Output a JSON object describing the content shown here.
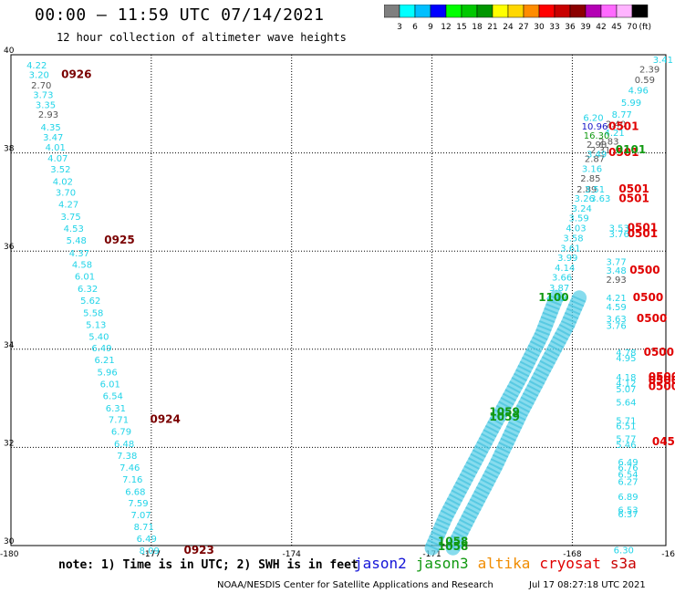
{
  "header": {
    "title": "00:00 — 11:59 UTC 07/14/2021",
    "subtitle": "12 hour collection of altimeter wave heights"
  },
  "colorbar": {
    "unit": "(ft)",
    "bins": [
      {
        "label": "3",
        "color": "#7f7f7f"
      },
      {
        "label": "6",
        "color": "#00ffff"
      },
      {
        "label": "9",
        "color": "#00bfff"
      },
      {
        "label": "12",
        "color": "#0000ff"
      },
      {
        "label": "15",
        "color": "#00ff00"
      },
      {
        "label": "18",
        "color": "#00c800"
      },
      {
        "label": "21",
        "color": "#009600"
      },
      {
        "label": "24",
        "color": "#ffff00"
      },
      {
        "label": "27",
        "color": "#ffd700"
      },
      {
        "label": "30",
        "color": "#ff8c00"
      },
      {
        "label": "33",
        "color": "#ff0000"
      },
      {
        "label": "36",
        "color": "#c80000"
      },
      {
        "label": "39",
        "color": "#8b0000"
      },
      {
        "label": "42",
        "color": "#b400b4"
      },
      {
        "label": "45",
        "color": "#ff69ff"
      },
      {
        "label": "70",
        "color": "#ffb4ff"
      },
      {
        "label": "",
        "color": "#000000"
      }
    ]
  },
  "map": {
    "lon_range": [
      -180,
      -166
    ],
    "lat_range": [
      30,
      40
    ],
    "x_ticks": [
      "-180",
      "-177",
      "-174",
      "-171",
      "-168",
      "-16"
    ],
    "y_ticks": [
      "40",
      "38",
      "36",
      "34",
      "32",
      "30"
    ],
    "colors": {
      "cyan": "#22d4e8",
      "track_fill": "#5fd0e8",
      "gray": "#555555",
      "blue": "#1515c8",
      "green": "#119911",
      "darkred": "#7a0000",
      "red": "#e00000"
    }
  },
  "tracks": {
    "left": {
      "values": [
        {
          "lon": -179.45,
          "lat": 39.8,
          "v": "4.22",
          "c": "cyan"
        },
        {
          "lon": -179.4,
          "lat": 39.6,
          "v": "3.20",
          "c": "cyan"
        },
        {
          "lon": -179.35,
          "lat": 39.39,
          "v": "2.70",
          "c": "gray"
        },
        {
          "lon": -179.31,
          "lat": 39.19,
          "v": "3.73",
          "c": "cyan"
        },
        {
          "lon": -179.26,
          "lat": 38.99,
          "v": "3.35",
          "c": "cyan"
        },
        {
          "lon": -179.2,
          "lat": 38.79,
          "v": "2.93",
          "c": "gray"
        },
        {
          "lon": -179.15,
          "lat": 38.53,
          "v": "4.35",
          "c": "cyan"
        },
        {
          "lon": -179.1,
          "lat": 38.33,
          "v": "3.47",
          "c": "cyan"
        },
        {
          "lon": -179.05,
          "lat": 38.12,
          "v": "4.01",
          "c": "cyan"
        },
        {
          "lon": -179.0,
          "lat": 37.9,
          "v": "4.07",
          "c": "cyan"
        },
        {
          "lon": -178.94,
          "lat": 37.68,
          "v": "3.52",
          "c": "cyan"
        },
        {
          "lon": -178.89,
          "lat": 37.43,
          "v": "4.02",
          "c": "cyan"
        },
        {
          "lon": -178.83,
          "lat": 37.2,
          "v": "3.70",
          "c": "cyan"
        },
        {
          "lon": -178.77,
          "lat": 36.96,
          "v": "4.27",
          "c": "cyan"
        },
        {
          "lon": -178.72,
          "lat": 36.71,
          "v": "3.75",
          "c": "cyan"
        },
        {
          "lon": -178.66,
          "lat": 36.47,
          "v": "4.53",
          "c": "cyan"
        },
        {
          "lon": -178.6,
          "lat": 36.23,
          "v": "5.48",
          "c": "cyan"
        },
        {
          "lon": -178.54,
          "lat": 35.97,
          "v": "4.37",
          "c": "cyan"
        },
        {
          "lon": -178.48,
          "lat": 35.73,
          "v": "4.58",
          "c": "cyan"
        },
        {
          "lon": -178.42,
          "lat": 35.49,
          "v": "6.01",
          "c": "cyan"
        },
        {
          "lon": -178.36,
          "lat": 35.24,
          "v": "6.32",
          "c": "cyan"
        },
        {
          "lon": -178.3,
          "lat": 35.0,
          "v": "5.62",
          "c": "cyan"
        },
        {
          "lon": -178.24,
          "lat": 34.75,
          "v": "5.58",
          "c": "cyan"
        },
        {
          "lon": -178.18,
          "lat": 34.51,
          "v": "5.13",
          "c": "cyan"
        },
        {
          "lon": -178.12,
          "lat": 34.27,
          "v": "5.40",
          "c": "cyan"
        },
        {
          "lon": -178.06,
          "lat": 34.03,
          "v": "6.49",
          "c": "cyan"
        },
        {
          "lon": -178.0,
          "lat": 33.79,
          "v": "6.21",
          "c": "cyan"
        },
        {
          "lon": -177.94,
          "lat": 33.54,
          "v": "5.96",
          "c": "cyan"
        },
        {
          "lon": -177.88,
          "lat": 33.3,
          "v": "6.01",
          "c": "cyan"
        },
        {
          "lon": -177.82,
          "lat": 33.06,
          "v": "6.54",
          "c": "cyan"
        },
        {
          "lon": -177.76,
          "lat": 32.81,
          "v": "6.31",
          "c": "cyan"
        },
        {
          "lon": -177.7,
          "lat": 32.57,
          "v": "7.71",
          "c": "cyan"
        },
        {
          "lon": -177.64,
          "lat": 32.33,
          "v": "6.79",
          "c": "cyan"
        },
        {
          "lon": -177.58,
          "lat": 32.08,
          "v": "6.48",
          "c": "cyan"
        },
        {
          "lon": -177.52,
          "lat": 31.84,
          "v": "7.38",
          "c": "cyan"
        },
        {
          "lon": -177.46,
          "lat": 31.6,
          "v": "7.46",
          "c": "cyan"
        },
        {
          "lon": -177.4,
          "lat": 31.36,
          "v": "7.16",
          "c": "cyan"
        },
        {
          "lon": -177.34,
          "lat": 31.11,
          "v": "6.68",
          "c": "cyan"
        },
        {
          "lon": -177.28,
          "lat": 30.87,
          "v": "7.59",
          "c": "cyan"
        },
        {
          "lon": -177.22,
          "lat": 30.63,
          "v": "7.07",
          "c": "cyan"
        },
        {
          "lon": -177.16,
          "lat": 30.39,
          "v": "8.71",
          "c": "cyan"
        },
        {
          "lon": -177.1,
          "lat": 30.15,
          "v": "6.49",
          "c": "cyan"
        },
        {
          "lon": -177.04,
          "lat": 29.91,
          "v": "8.09",
          "c": "cyan"
        }
      ],
      "times": [
        {
          "lon": -178.6,
          "lat": 39.6,
          "t": "0926",
          "c": "darkred"
        },
        {
          "lon": -177.68,
          "lat": 36.23,
          "t": "0925",
          "c": "darkred"
        },
        {
          "lon": -176.7,
          "lat": 32.57,
          "t": "0924",
          "c": "darkred"
        },
        {
          "lon": -175.98,
          "lat": 29.91,
          "t": "0923",
          "c": "darkred"
        }
      ]
    },
    "right_top": {
      "values": [
        {
          "lon": -166.06,
          "lat": 39.91,
          "v": "3.41",
          "c": "cyan"
        },
        {
          "lon": -166.35,
          "lat": 39.71,
          "v": "2.39",
          "c": "gray"
        },
        {
          "lon": -166.45,
          "lat": 39.5,
          "v": "0.59",
          "c": "gray"
        },
        {
          "lon": -166.59,
          "lat": 39.28,
          "v": "4.96",
          "c": "cyan"
        },
        {
          "lon": -166.74,
          "lat": 39.03,
          "v": "5.99",
          "c": "cyan"
        },
        {
          "lon": -166.94,
          "lat": 38.79,
          "v": "8.77",
          "c": "cyan"
        },
        {
          "lon": -167.07,
          "lat": 38.6,
          "v": "2.40",
          "c": "gray"
        },
        {
          "lon": -167.1,
          "lat": 38.42,
          "v": "4.21",
          "c": "cyan"
        },
        {
          "lon": -167.22,
          "lat": 38.24,
          "v": "2.83",
          "c": "gray"
        },
        {
          "lon": -167.4,
          "lat": 38.07,
          "v": "2.31",
          "c": "gray"
        },
        {
          "lon": -167.52,
          "lat": 37.89,
          "v": "2.87",
          "c": "gray"
        },
        {
          "lon": -167.58,
          "lat": 37.69,
          "v": "3.16",
          "c": "cyan"
        },
        {
          "lon": -167.61,
          "lat": 37.49,
          "v": "2.85",
          "c": "gray"
        },
        {
          "lon": -167.69,
          "lat": 37.27,
          "v": "2.89",
          "c": "gray"
        },
        {
          "lon": -167.74,
          "lat": 37.08,
          "v": "3.26",
          "c": "cyan"
        },
        {
          "lon": -167.8,
          "lat": 36.88,
          "v": "3.24",
          "c": "cyan"
        },
        {
          "lon": -167.86,
          "lat": 36.68,
          "v": "3.59",
          "c": "cyan"
        },
        {
          "lon": -167.92,
          "lat": 36.48,
          "v": "4.03",
          "c": "cyan"
        },
        {
          "lon": -167.98,
          "lat": 36.27,
          "v": "3.58",
          "c": "cyan"
        },
        {
          "lon": -168.04,
          "lat": 36.07,
          "v": "3.61",
          "c": "cyan"
        },
        {
          "lon": -168.1,
          "lat": 35.87,
          "v": "3.99",
          "c": "cyan"
        },
        {
          "lon": -168.16,
          "lat": 35.67,
          "v": "4.14",
          "c": "cyan"
        },
        {
          "lon": -168.22,
          "lat": 35.47,
          "v": "3.66",
          "c": "cyan"
        },
        {
          "lon": -168.28,
          "lat": 35.26,
          "v": "3.87",
          "c": "cyan"
        },
        {
          "lon": -168.34,
          "lat": 35.06,
          "v": "4.19",
          "c": "cyan"
        }
      ],
      "near_cross": [
        {
          "lon": -167.55,
          "lat": 38.73,
          "v": "6.20",
          "c": "cyan"
        },
        {
          "lon": -167.52,
          "lat": 38.55,
          "v": "10.96",
          "c": "blue"
        },
        {
          "lon": -167.48,
          "lat": 38.36,
          "v": "16.30",
          "c": "green"
        },
        {
          "lon": -167.48,
          "lat": 38.18,
          "v": "2.98",
          "c": "gray"
        },
        {
          "lon": -167.48,
          "lat": 37.98,
          "v": "3.49",
          "c": "cyan"
        },
        {
          "lon": -167.52,
          "lat": 37.27,
          "v": "3.51",
          "c": "cyan"
        },
        {
          "lon": -167.4,
          "lat": 37.08,
          "v": "3.63",
          "c": "cyan"
        }
      ],
      "times": [
        {
          "lon": -166.9,
          "lat": 38.54,
          "t": "0501",
          "c": "red"
        },
        {
          "lon": -166.9,
          "lat": 38.01,
          "t": "0501",
          "c": "red"
        },
        {
          "lon": -166.75,
          "lat": 38.07,
          "t": "0101",
          "c": "green"
        },
        {
          "lon": -166.68,
          "lat": 37.27,
          "t": "0501",
          "c": "red"
        },
        {
          "lon": -166.68,
          "lat": 37.07,
          "t": "0501",
          "c": "red"
        },
        {
          "lon": -166.5,
          "lat": 36.48,
          "t": "0501",
          "c": "red"
        },
        {
          "lon": -166.5,
          "lat": 36.36,
          "t": "0501",
          "c": "red"
        }
      ]
    },
    "right_mid": {
      "values": [
        {
          "lon": -167.0,
          "lat": 36.48,
          "v": "3.53",
          "c": "cyan"
        },
        {
          "lon": -167.0,
          "lat": 36.36,
          "v": "3.76",
          "c": "cyan"
        },
        {
          "lon": -167.06,
          "lat": 35.79,
          "v": "3.77",
          "c": "cyan"
        },
        {
          "lon": -167.06,
          "lat": 35.61,
          "v": "3.48",
          "c": "cyan"
        },
        {
          "lon": -167.06,
          "lat": 35.43,
          "v": "2.93",
          "c": "gray"
        },
        {
          "lon": -167.06,
          "lat": 35.06,
          "v": "4.21",
          "c": "cyan"
        },
        {
          "lon": -167.06,
          "lat": 34.87,
          "v": "4.59",
          "c": "cyan"
        },
        {
          "lon": -167.06,
          "lat": 34.63,
          "v": "3.63",
          "c": "cyan"
        },
        {
          "lon": -167.06,
          "lat": 34.49,
          "v": "3.76",
          "c": "cyan"
        }
      ],
      "times": [
        {
          "lon": -166.45,
          "lat": 35.61,
          "t": "0500",
          "c": "red"
        },
        {
          "lon": -166.38,
          "lat": 35.06,
          "t": "0500",
          "c": "red"
        },
        {
          "lon": -166.3,
          "lat": 34.63,
          "t": "0500",
          "c": "red"
        },
        {
          "lon": -168.4,
          "lat": 35.06,
          "t": "1100",
          "c": "green"
        }
      ]
    },
    "right_low": {
      "values": [
        {
          "lon": -166.85,
          "lat": 33.94,
          "v": "4.78",
          "c": "cyan"
        },
        {
          "lon": -166.85,
          "lat": 33.83,
          "v": "4.95",
          "c": "cyan"
        },
        {
          "lon": -166.85,
          "lat": 33.44,
          "v": "4.18",
          "c": "cyan"
        },
        {
          "lon": -166.85,
          "lat": 33.32,
          "v": "4.12",
          "c": "cyan"
        },
        {
          "lon": -166.85,
          "lat": 33.2,
          "v": "5.07",
          "c": "cyan"
        },
        {
          "lon": -166.85,
          "lat": 32.93,
          "v": "5.64",
          "c": "cyan"
        },
        {
          "lon": -166.85,
          "lat": 32.56,
          "v": "5.71",
          "c": "cyan"
        },
        {
          "lon": -166.85,
          "lat": 32.44,
          "v": "6.51",
          "c": "cyan"
        },
        {
          "lon": -166.85,
          "lat": 32.18,
          "v": "5.77",
          "c": "cyan"
        },
        {
          "lon": -166.85,
          "lat": 32.06,
          "v": "5.46",
          "c": "cyan"
        },
        {
          "lon": -166.81,
          "lat": 31.71,
          "v": "6.49",
          "c": "cyan"
        },
        {
          "lon": -166.81,
          "lat": 31.6,
          "v": "6.76",
          "c": "cyan"
        },
        {
          "lon": -166.81,
          "lat": 31.46,
          "v": "6.54",
          "c": "cyan"
        },
        {
          "lon": -166.81,
          "lat": 31.31,
          "v": "6.27",
          "c": "cyan"
        },
        {
          "lon": -166.81,
          "lat": 31.0,
          "v": "6.89",
          "c": "cyan"
        },
        {
          "lon": -166.81,
          "lat": 30.73,
          "v": "6.53",
          "c": "cyan"
        },
        {
          "lon": -166.81,
          "lat": 30.65,
          "v": "6.37",
          "c": "cyan"
        },
        {
          "lon": -166.9,
          "lat": 29.92,
          "v": "6.30",
          "c": "cyan"
        }
      ],
      "times": [
        {
          "lon": -166.15,
          "lat": 33.94,
          "t": "0500",
          "c": "red"
        },
        {
          "lon": -166.05,
          "lat": 33.44,
          "t": "0500",
          "c": "red"
        },
        {
          "lon": -166.05,
          "lat": 33.36,
          "t": "0500",
          "c": "red"
        },
        {
          "lon": -166.05,
          "lat": 33.24,
          "t": "0500",
          "c": "red"
        },
        {
          "lon": -166.05,
          "lat": 32.12,
          "t": "045",
          "c": "red"
        }
      ]
    },
    "bands": {
      "band1": [
        {
          "lon": -171.0,
          "lat": 29.95
        },
        {
          "lon": -170.7,
          "lat": 30.6
        },
        {
          "lon": -170.2,
          "lat": 31.5
        },
        {
          "lon": -169.7,
          "lat": 32.4
        },
        {
          "lon": -169.1,
          "lat": 33.45
        },
        {
          "lon": -168.65,
          "lat": 34.3
        },
        {
          "lon": -168.34,
          "lat": 35.06
        }
      ],
      "band2": [
        {
          "lon": -170.55,
          "lat": 29.95
        },
        {
          "lon": -170.2,
          "lat": 30.6
        },
        {
          "lon": -169.65,
          "lat": 31.6
        },
        {
          "lon": -169.1,
          "lat": 32.7
        },
        {
          "lon": -168.55,
          "lat": 33.7
        },
        {
          "lon": -168.1,
          "lat": 34.5
        },
        {
          "lon": -167.85,
          "lat": 35.05
        }
      ],
      "times": [
        {
          "lon": -169.45,
          "lat": 32.72,
          "t": "1059",
          "c": "green"
        },
        {
          "lon": -169.45,
          "lat": 32.62,
          "t": "1059",
          "c": "green"
        },
        {
          "lon": -170.55,
          "lat": 30.08,
          "t": "1058",
          "c": "green"
        },
        {
          "lon": -170.55,
          "lat": 29.98,
          "t": "1058",
          "c": "green"
        }
      ]
    }
  },
  "footer": {
    "note": "note: 1) Time is in UTC; 2) SWH is in feet",
    "legend": [
      {
        "label": "jason2",
        "color": "#1515d8"
      },
      {
        "label": "jason3",
        "color": "#119911"
      },
      {
        "label": "altika",
        "color": "#f08c00"
      },
      {
        "label": "cryosat",
        "color": "#e00000"
      },
      {
        "label": "s3a",
        "color": "#c80000"
      }
    ],
    "credit": "NOAA/NESDIS Center for Satellite Applications and Research",
    "timestamp": "Jul 17 08:27:18 UTC 2021"
  }
}
